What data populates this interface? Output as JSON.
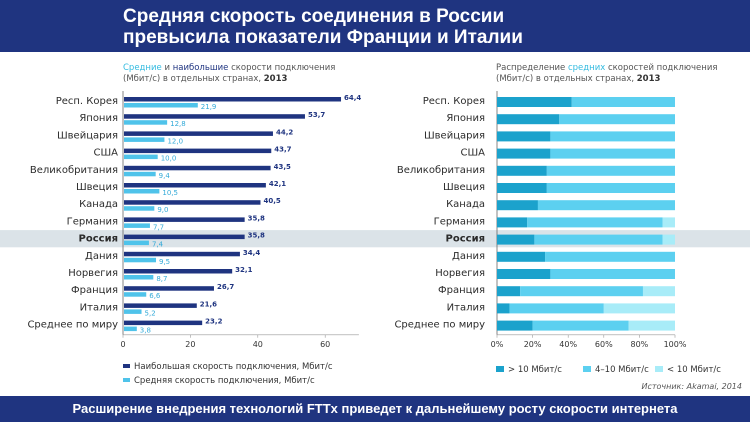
{
  "header": {
    "title_line1": "Средняя скорость соединения в России",
    "title_line2": "превысила показатели Франции и Италии"
  },
  "footer": {
    "text": "Расширение внедрения технологий FTTx приведет к дальнейшему росту скорости интернета"
  },
  "colors": {
    "header_bg": "#1f3480",
    "max_bar": "#1f3480",
    "avg_bar": "#4fc3ea",
    "seg_high": "#1ba2cc",
    "seg_mid": "#5cd0f0",
    "seg_low": "#a8ecf8",
    "highlight_row": "#dbe3e8"
  },
  "chart_data": [
    {
      "type": "bar",
      "orientation": "horizontal",
      "caption_part1": "Средние",
      "caption_part2": " и ",
      "caption_part3": "наибольшие",
      "caption_part4": " скорости подключения",
      "caption_line2": "(Мбит/с) в отдельных странах, ",
      "caption_year": "2013",
      "categories": [
        "Респ. Корея",
        "Япония",
        "Швейцария",
        "США",
        "Великобритания",
        "Швеция",
        "Канада",
        "Германия",
        "Россия",
        "Дания",
        "Норвегия",
        "Франция",
        "Италия",
        "Среднее по миру"
      ],
      "highlight_category": "Россия",
      "series": [
        {
          "name": "Наибольшая скорость подключения, Мбит/с",
          "values": [
            64.4,
            53.7,
            44.2,
            43.7,
            43.5,
            42.1,
            40.5,
            35.8,
            35.8,
            34.4,
            32.1,
            26.7,
            21.6,
            23.2
          ]
        },
        {
          "name": "Средняя скорость подключения, Мбит/с",
          "values": [
            21.9,
            12.8,
            12.0,
            10.0,
            9.4,
            10.5,
            9.0,
            7.7,
            7.4,
            9.5,
            8.7,
            6.6,
            5.2,
            3.8
          ]
        }
      ],
      "labels_max": [
        "64,4",
        "53,7",
        "44,2",
        "43,7",
        "43,5",
        "42,1",
        "40,5",
        "35,8",
        "35,8",
        "34,4",
        "32,1",
        "26,7",
        "21,6",
        "23,2"
      ],
      "labels_avg": [
        "21,9",
        "12,8",
        "12,0",
        "10,0",
        "9,4",
        "10,5",
        "9,0",
        "7,7",
        "7,4",
        "9,5",
        "8,7",
        "6,6",
        "5,2",
        "3,8"
      ],
      "xlim": [
        0,
        70
      ],
      "xticks": [
        0,
        20,
        40,
        60
      ],
      "xtick_labels": [
        "0",
        "20",
        "40",
        "60"
      ]
    },
    {
      "type": "bar",
      "orientation": "horizontal",
      "stacked": true,
      "caption_part1": "Распределение ",
      "caption_part2": "средних",
      "caption_part3": " скоростей подключения",
      "caption_line2": "(Мбит/с) в отдельных странах, ",
      "caption_year": "2013",
      "categories": [
        "Респ. Корея",
        "Япония",
        "Швейцария",
        "США",
        "Великобритания",
        "Швеция",
        "Канада",
        "Германия",
        "Россия",
        "Дания",
        "Норвегия",
        "Франция",
        "Италия",
        "Среднее по миру"
      ],
      "highlight_category": "Россия",
      "series": [
        {
          "name": "> 10 Мбит/с",
          "values": [
            42,
            35,
            30,
            30,
            28,
            28,
            23,
            17,
            21,
            27,
            30,
            13,
            7,
            20
          ]
        },
        {
          "name": "4–10 Мбит/с",
          "values": [
            58,
            65,
            70,
            70,
            72,
            72,
            77,
            76,
            72,
            73,
            70,
            69,
            53,
            54
          ]
        },
        {
          "name": "< 10 Мбит/с",
          "values": [
            0,
            0,
            0,
            0,
            0,
            0,
            0,
            7,
            7,
            0,
            0,
            18,
            40,
            26
          ]
        }
      ],
      "xlim": [
        0,
        100
      ],
      "xticks": [
        0,
        20,
        40,
        60,
        80,
        100
      ],
      "xtick_labels": [
        "0%",
        "20%",
        "40%",
        "60%",
        "80%",
        "100%"
      ]
    }
  ],
  "source": "Источник: Akamai, 2014"
}
